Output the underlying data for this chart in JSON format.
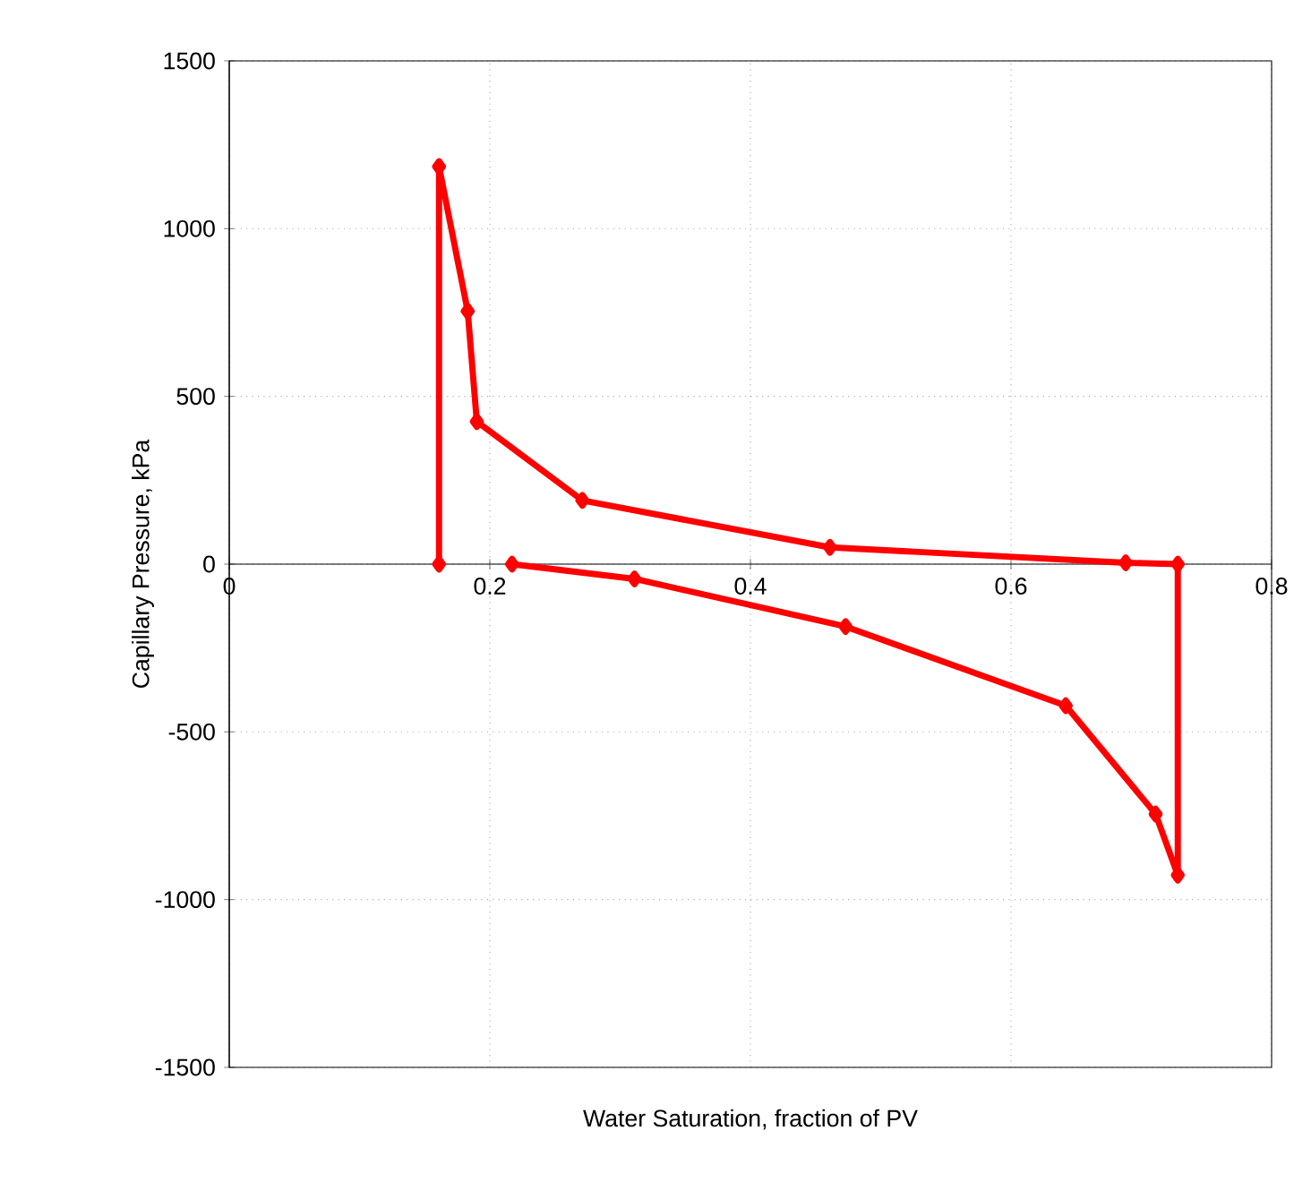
{
  "chart_data": {
    "type": "line",
    "xlabel": "Water Saturation, fraction of PV",
    "ylabel": "Capillary Pressure, kPa",
    "x": [
      0.161,
      0.161,
      0.183,
      0.19,
      0.271,
      0.461,
      0.688,
      0.728,
      0.728,
      0.711,
      0.642,
      0.473,
      0.311,
      0.217
    ],
    "values": [
      0,
      1185,
      754,
      425,
      190,
      50,
      4,
      0,
      -927,
      -745,
      -422,
      -186,
      -44,
      0
    ],
    "color": "#ff0000",
    "xlim": [
      0,
      0.8
    ],
    "ylim": [
      -1500,
      1500
    ],
    "xticks": [
      0,
      0.2,
      0.4,
      0.6,
      0.8
    ],
    "yticks": [
      -1500,
      -1000,
      -500,
      0,
      500,
      1000,
      1500
    ],
    "grid": true,
    "marker": "diamond",
    "line_style": "solid"
  }
}
